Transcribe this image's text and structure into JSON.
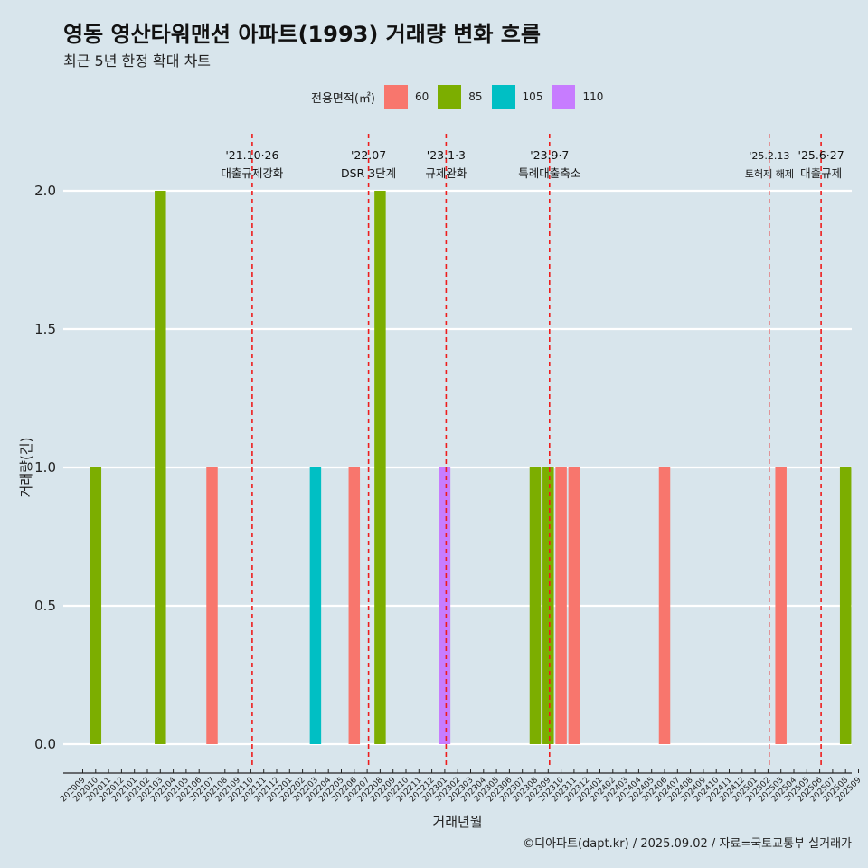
{
  "header": {
    "title": "영동 영산타워맨션 아파트(1993) 거래량 변화 흐름",
    "subtitle": "최근 5년 한정 확대 차트"
  },
  "legend": {
    "title": "전용면적(㎡)",
    "items": [
      {
        "label": "60",
        "color": "#f8766d"
      },
      {
        "label": "85",
        "color": "#7cae00"
      },
      {
        "label": "105",
        "color": "#00bfc4"
      },
      {
        "label": "110",
        "color": "#c77cff"
      }
    ]
  },
  "caption": "©디아파트(dapt.kr) / 2025.09.02 / 자료=국토교통부 실거래가",
  "chart_data": {
    "type": "bar",
    "xlabel": "거래년월",
    "ylabel": "거래량(건)",
    "ylim": [
      0,
      2
    ],
    "yticks": [
      "0.0",
      "0.5",
      "1.0",
      "1.5",
      "2.0"
    ],
    "grid": "horizontal",
    "legend_position": "top",
    "categories": [
      "202009",
      "202010",
      "202011",
      "202012",
      "202101",
      "202102",
      "202103",
      "202104",
      "202105",
      "202106",
      "202107",
      "202108",
      "202109",
      "202110",
      "202111",
      "202112",
      "202201",
      "202202",
      "202203",
      "202204",
      "202205",
      "202206",
      "202207",
      "202208",
      "202209",
      "202210",
      "202211",
      "202212",
      "202301",
      "202302",
      "202303",
      "202304",
      "202305",
      "202306",
      "202307",
      "202308",
      "202309",
      "202310",
      "202311",
      "202312",
      "202401",
      "202402",
      "202403",
      "202404",
      "202405",
      "202406",
      "202407",
      "202408",
      "202409",
      "202410",
      "202411",
      "202412",
      "202501",
      "202502",
      "202503",
      "202504",
      "202505",
      "202506",
      "202507",
      "202508",
      "202509"
    ],
    "series": [
      {
        "name": "60",
        "color": "#f8766d",
        "points": [
          {
            "x": "202107",
            "y": 1
          },
          {
            "x": "202206",
            "y": 1
          },
          {
            "x": "202310",
            "y": 1
          },
          {
            "x": "202311",
            "y": 1
          },
          {
            "x": "202406",
            "y": 1
          },
          {
            "x": "202503",
            "y": 1
          }
        ]
      },
      {
        "name": "85",
        "color": "#7cae00",
        "points": [
          {
            "x": "202010",
            "y": 1
          },
          {
            "x": "202103",
            "y": 2
          },
          {
            "x": "202208",
            "y": 2
          },
          {
            "x": "202308",
            "y": 1
          },
          {
            "x": "202309",
            "y": 1
          },
          {
            "x": "202508",
            "y": 1
          }
        ]
      },
      {
        "name": "105",
        "color": "#00bfc4",
        "points": [
          {
            "x": "202203",
            "y": 1
          }
        ]
      },
      {
        "name": "110",
        "color": "#c77cff",
        "points": [
          {
            "x": "202301",
            "y": 1
          }
        ]
      }
    ],
    "annotations": [
      {
        "x": "202110",
        "date": "'21.10·26",
        "label": "대출규제강화"
      },
      {
        "x": "202207",
        "date": "'22.07",
        "label": "DSR 3단계"
      },
      {
        "x": "202301",
        "date": "'23.1·3",
        "label": "규제완화"
      },
      {
        "x": "202309",
        "date": "'23.9·7",
        "label": "특례대출축소"
      },
      {
        "x": "202502",
        "date": "'25.2.13",
        "label": "토허제 해제"
      },
      {
        "x": "202506",
        "date": "'25.6·27",
        "label": "대출규제"
      }
    ]
  }
}
